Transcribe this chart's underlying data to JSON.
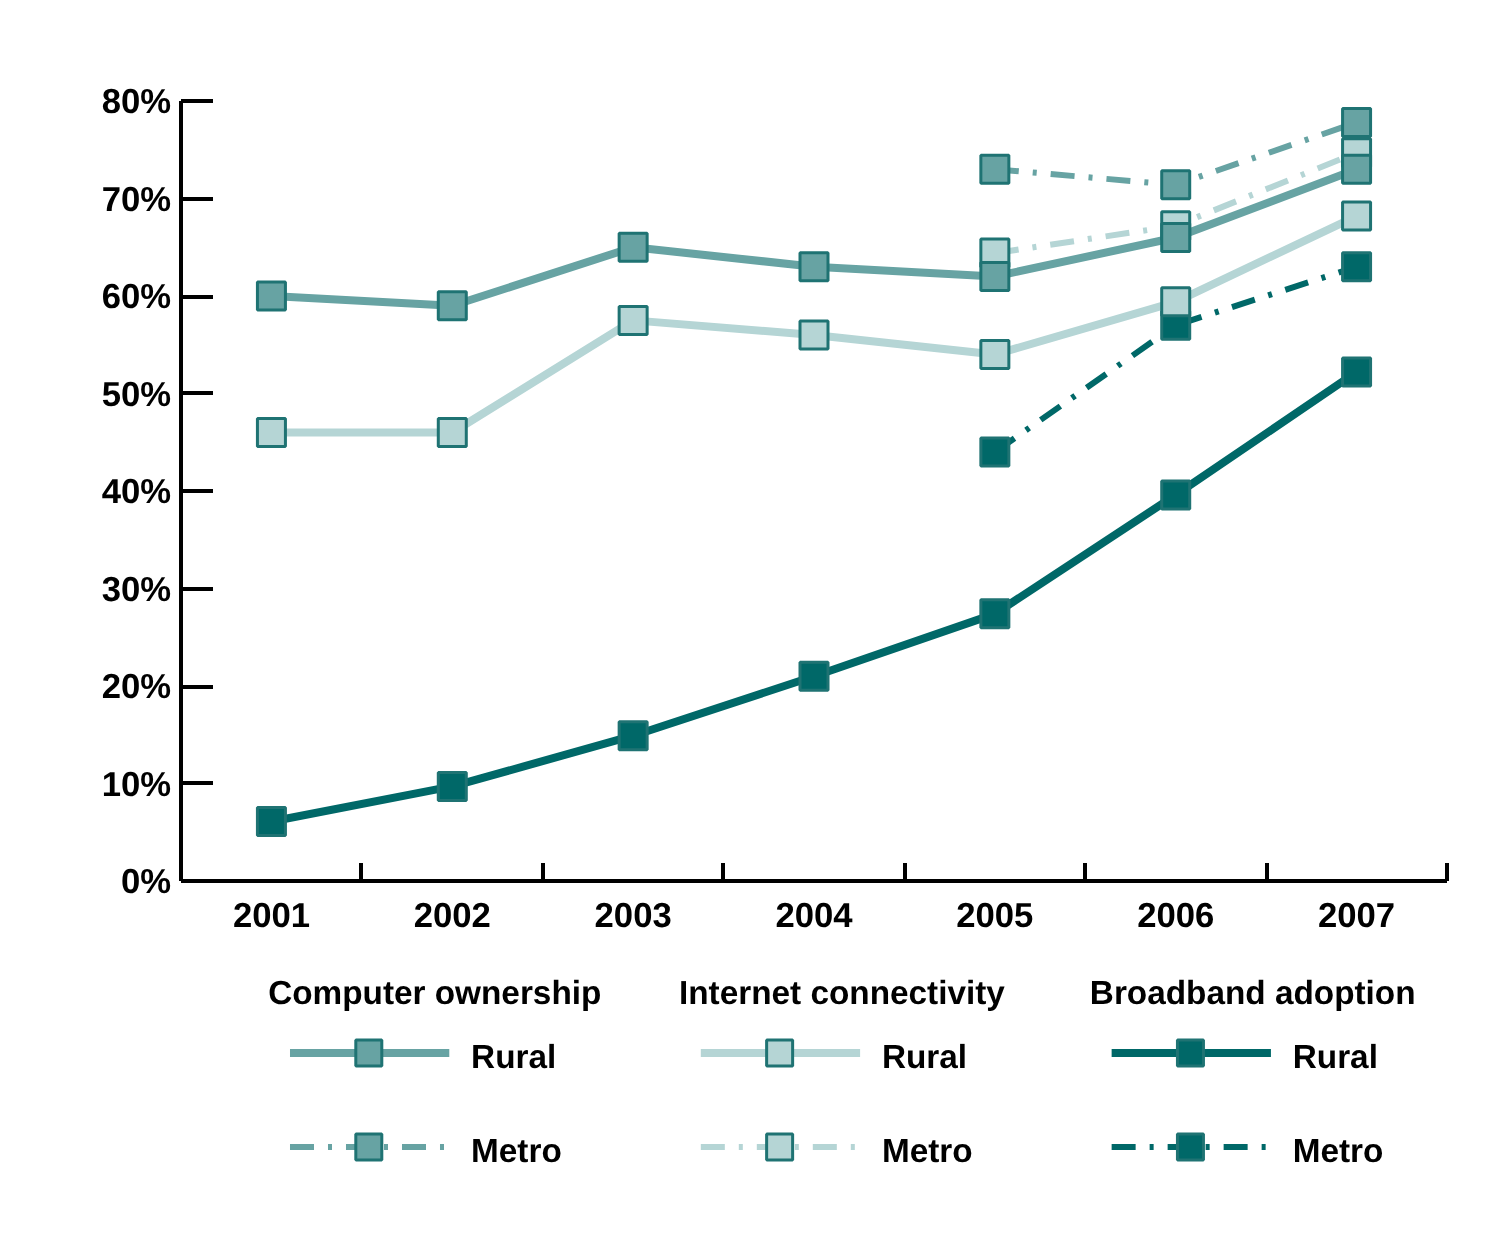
{
  "chart_data": {
    "type": "line",
    "categories": [
      "2001",
      "2002",
      "2003",
      "2004",
      "2005",
      "2006",
      "2007"
    ],
    "ylim": [
      0,
      80
    ],
    "yticks": [
      {
        "value": 0,
        "label": "0%"
      },
      {
        "value": 10,
        "label": "10%"
      },
      {
        "value": 20,
        "label": "20%"
      },
      {
        "value": 30,
        "label": "30%"
      },
      {
        "value": 40,
        "label": "40%"
      },
      {
        "value": 50,
        "label": "50%"
      },
      {
        "value": 60,
        "label": "60%"
      },
      {
        "value": 70,
        "label": "70%"
      },
      {
        "value": 80,
        "label": "80%"
      }
    ],
    "annotations": [
      "Computer ownership",
      "Internet connectivity",
      "Broadband adoption"
    ],
    "series": [
      {
        "name": "Rural",
        "color": "#67a3a3",
        "line_style": "solid",
        "values": [
          60,
          59,
          65,
          63,
          62,
          66,
          73
        ]
      },
      {
        "name": "Metro",
        "color": "#67a3a3",
        "line_style": "dashed",
        "values": [
          null,
          null,
          null,
          null,
          73,
          71.4,
          77.8
        ]
      },
      {
        "name": "Rural",
        "color": "#b5d5d5",
        "line_style": "solid",
        "values": [
          46,
          46,
          57.5,
          56,
          54,
          59.4,
          68.2
        ]
      },
      {
        "name": "Metro",
        "color": "#b5d5d5",
        "line_style": "dashed",
        "values": [
          null,
          null,
          null,
          null,
          64.4,
          67.2,
          74.7
        ]
      },
      {
        "name": "Rural",
        "color": "#006868",
        "line_style": "solid",
        "values": [
          6.1,
          9.7,
          14.9,
          21,
          27.4,
          39.6,
          52.2
        ]
      },
      {
        "name": "Metro",
        "color": "#006868",
        "line_style": "dashed",
        "values": [
          null,
          null,
          null,
          null,
          44,
          57,
          63
        ]
      }
    ],
    "marker": "square",
    "grid": false,
    "legend": "bottom"
  }
}
